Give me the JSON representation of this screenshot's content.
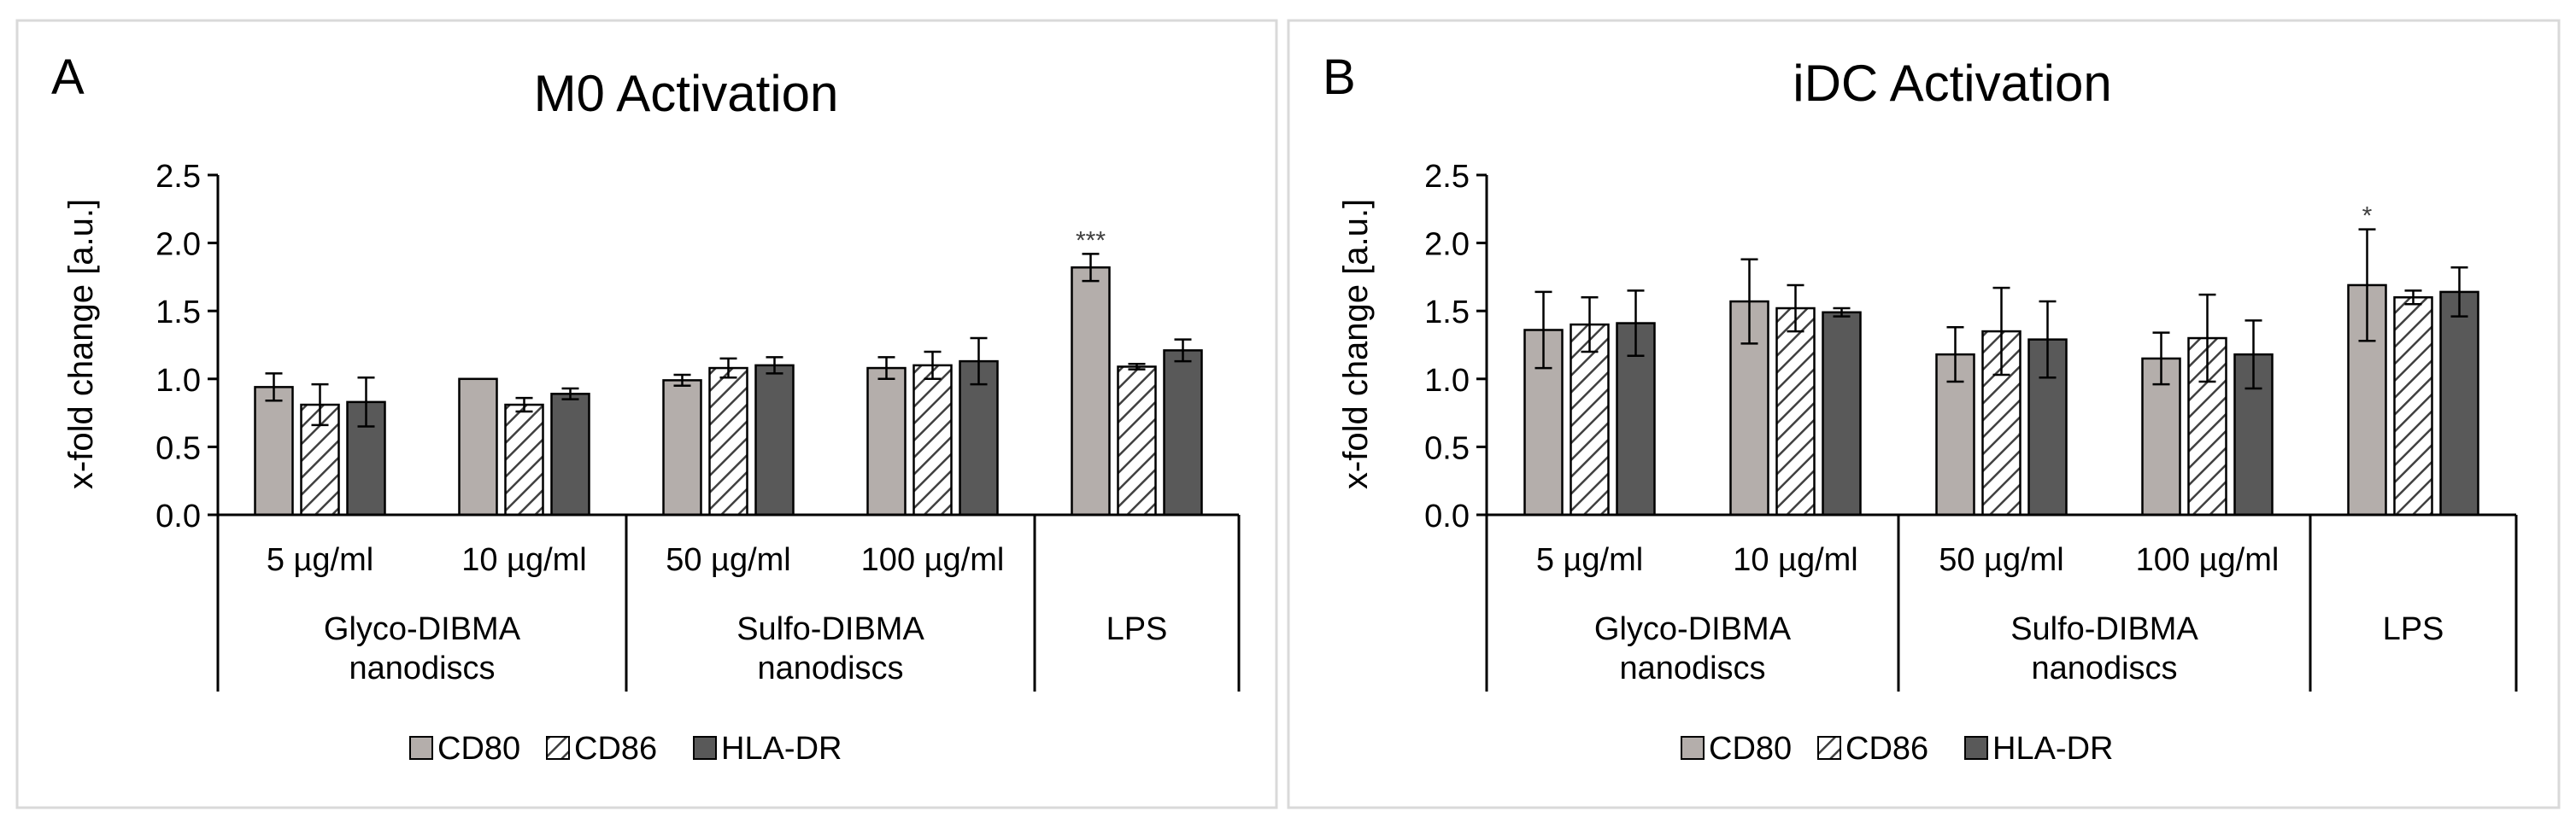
{
  "chart_data": [
    {
      "panel_label": "A",
      "type": "bar",
      "title": "M0 Activation",
      "ylabel": "x-fold change [a.u.]",
      "ylim": [
        0,
        2.5
      ],
      "yticks": [
        "0.0",
        "0.5",
        "1.0",
        "1.5",
        "2.0",
        "2.5"
      ],
      "categories": [
        "5 µg/ml",
        "10 µg/ml",
        "50 µg/ml",
        "100 µg/ml",
        ""
      ],
      "groups": [
        {
          "label_lines": [
            "Glyco-DIBMA",
            "nanodiscs"
          ],
          "span": [
            0,
            1
          ]
        },
        {
          "label_lines": [
            "Sulfo-DIBMA",
            "nanodiscs"
          ],
          "span": [
            2,
            3
          ]
        },
        {
          "label_lines": [
            "LPS"
          ],
          "span": [
            4,
            4
          ]
        }
      ],
      "series": [
        {
          "name": "CD80",
          "pattern": "light",
          "values": [
            0.94,
            1.0,
            0.99,
            1.08,
            1.82
          ],
          "errors": [
            0.1,
            0.0,
            0.04,
            0.08,
            0.1
          ]
        },
        {
          "name": "CD86",
          "pattern": "hatched",
          "values": [
            0.81,
            0.81,
            1.08,
            1.1,
            1.09
          ],
          "errors": [
            0.15,
            0.05,
            0.07,
            0.1,
            0.02
          ]
        },
        {
          "name": "HLA-DR",
          "pattern": "dark",
          "values": [
            0.83,
            0.89,
            1.1,
            1.13,
            1.21
          ],
          "errors": [
            0.18,
            0.04,
            0.06,
            0.17,
            0.08
          ]
        }
      ],
      "annotations": [
        {
          "category": 4,
          "series": 0,
          "text": "***"
        }
      ],
      "legend_position": "bottom"
    },
    {
      "panel_label": "B",
      "type": "bar",
      "title": "iDC Activation",
      "ylabel": "x-fold change [a.u.]",
      "ylim": [
        0,
        2.5
      ],
      "yticks": [
        "0.0",
        "0.5",
        "1.0",
        "1.5",
        "2.0",
        "2.5"
      ],
      "categories": [
        "5 µg/ml",
        "10 µg/ml",
        "50 µg/ml",
        "100 µg/ml",
        ""
      ],
      "groups": [
        {
          "label_lines": [
            "Glyco-DIBMA",
            "nanodiscs"
          ],
          "span": [
            0,
            1
          ]
        },
        {
          "label_lines": [
            "Sulfo-DIBMA",
            "nanodiscs"
          ],
          "span": [
            2,
            3
          ]
        },
        {
          "label_lines": [
            "LPS"
          ],
          "span": [
            4,
            4
          ]
        }
      ],
      "series": [
        {
          "name": "CD80",
          "pattern": "light",
          "values": [
            1.36,
            1.57,
            1.18,
            1.15,
            1.69
          ],
          "errors": [
            0.28,
            0.31,
            0.2,
            0.19,
            0.41
          ]
        },
        {
          "name": "CD86",
          "pattern": "hatched",
          "values": [
            1.4,
            1.52,
            1.35,
            1.3,
            1.6
          ],
          "errors": [
            0.2,
            0.17,
            0.32,
            0.32,
            0.05
          ]
        },
        {
          "name": "HLA-DR",
          "pattern": "dark",
          "values": [
            1.41,
            1.49,
            1.29,
            1.18,
            1.64
          ],
          "errors": [
            0.24,
            0.03,
            0.28,
            0.25,
            0.18
          ]
        }
      ],
      "annotations": [
        {
          "category": 4,
          "series": 0,
          "text": "*"
        }
      ],
      "legend_position": "bottom"
    }
  ],
  "colors": {
    "light": "#b4aeab",
    "dark": "#595959",
    "hatch": "#404040",
    "border": "#d9d9d9",
    "axis": "#000000",
    "text": "#000000"
  }
}
